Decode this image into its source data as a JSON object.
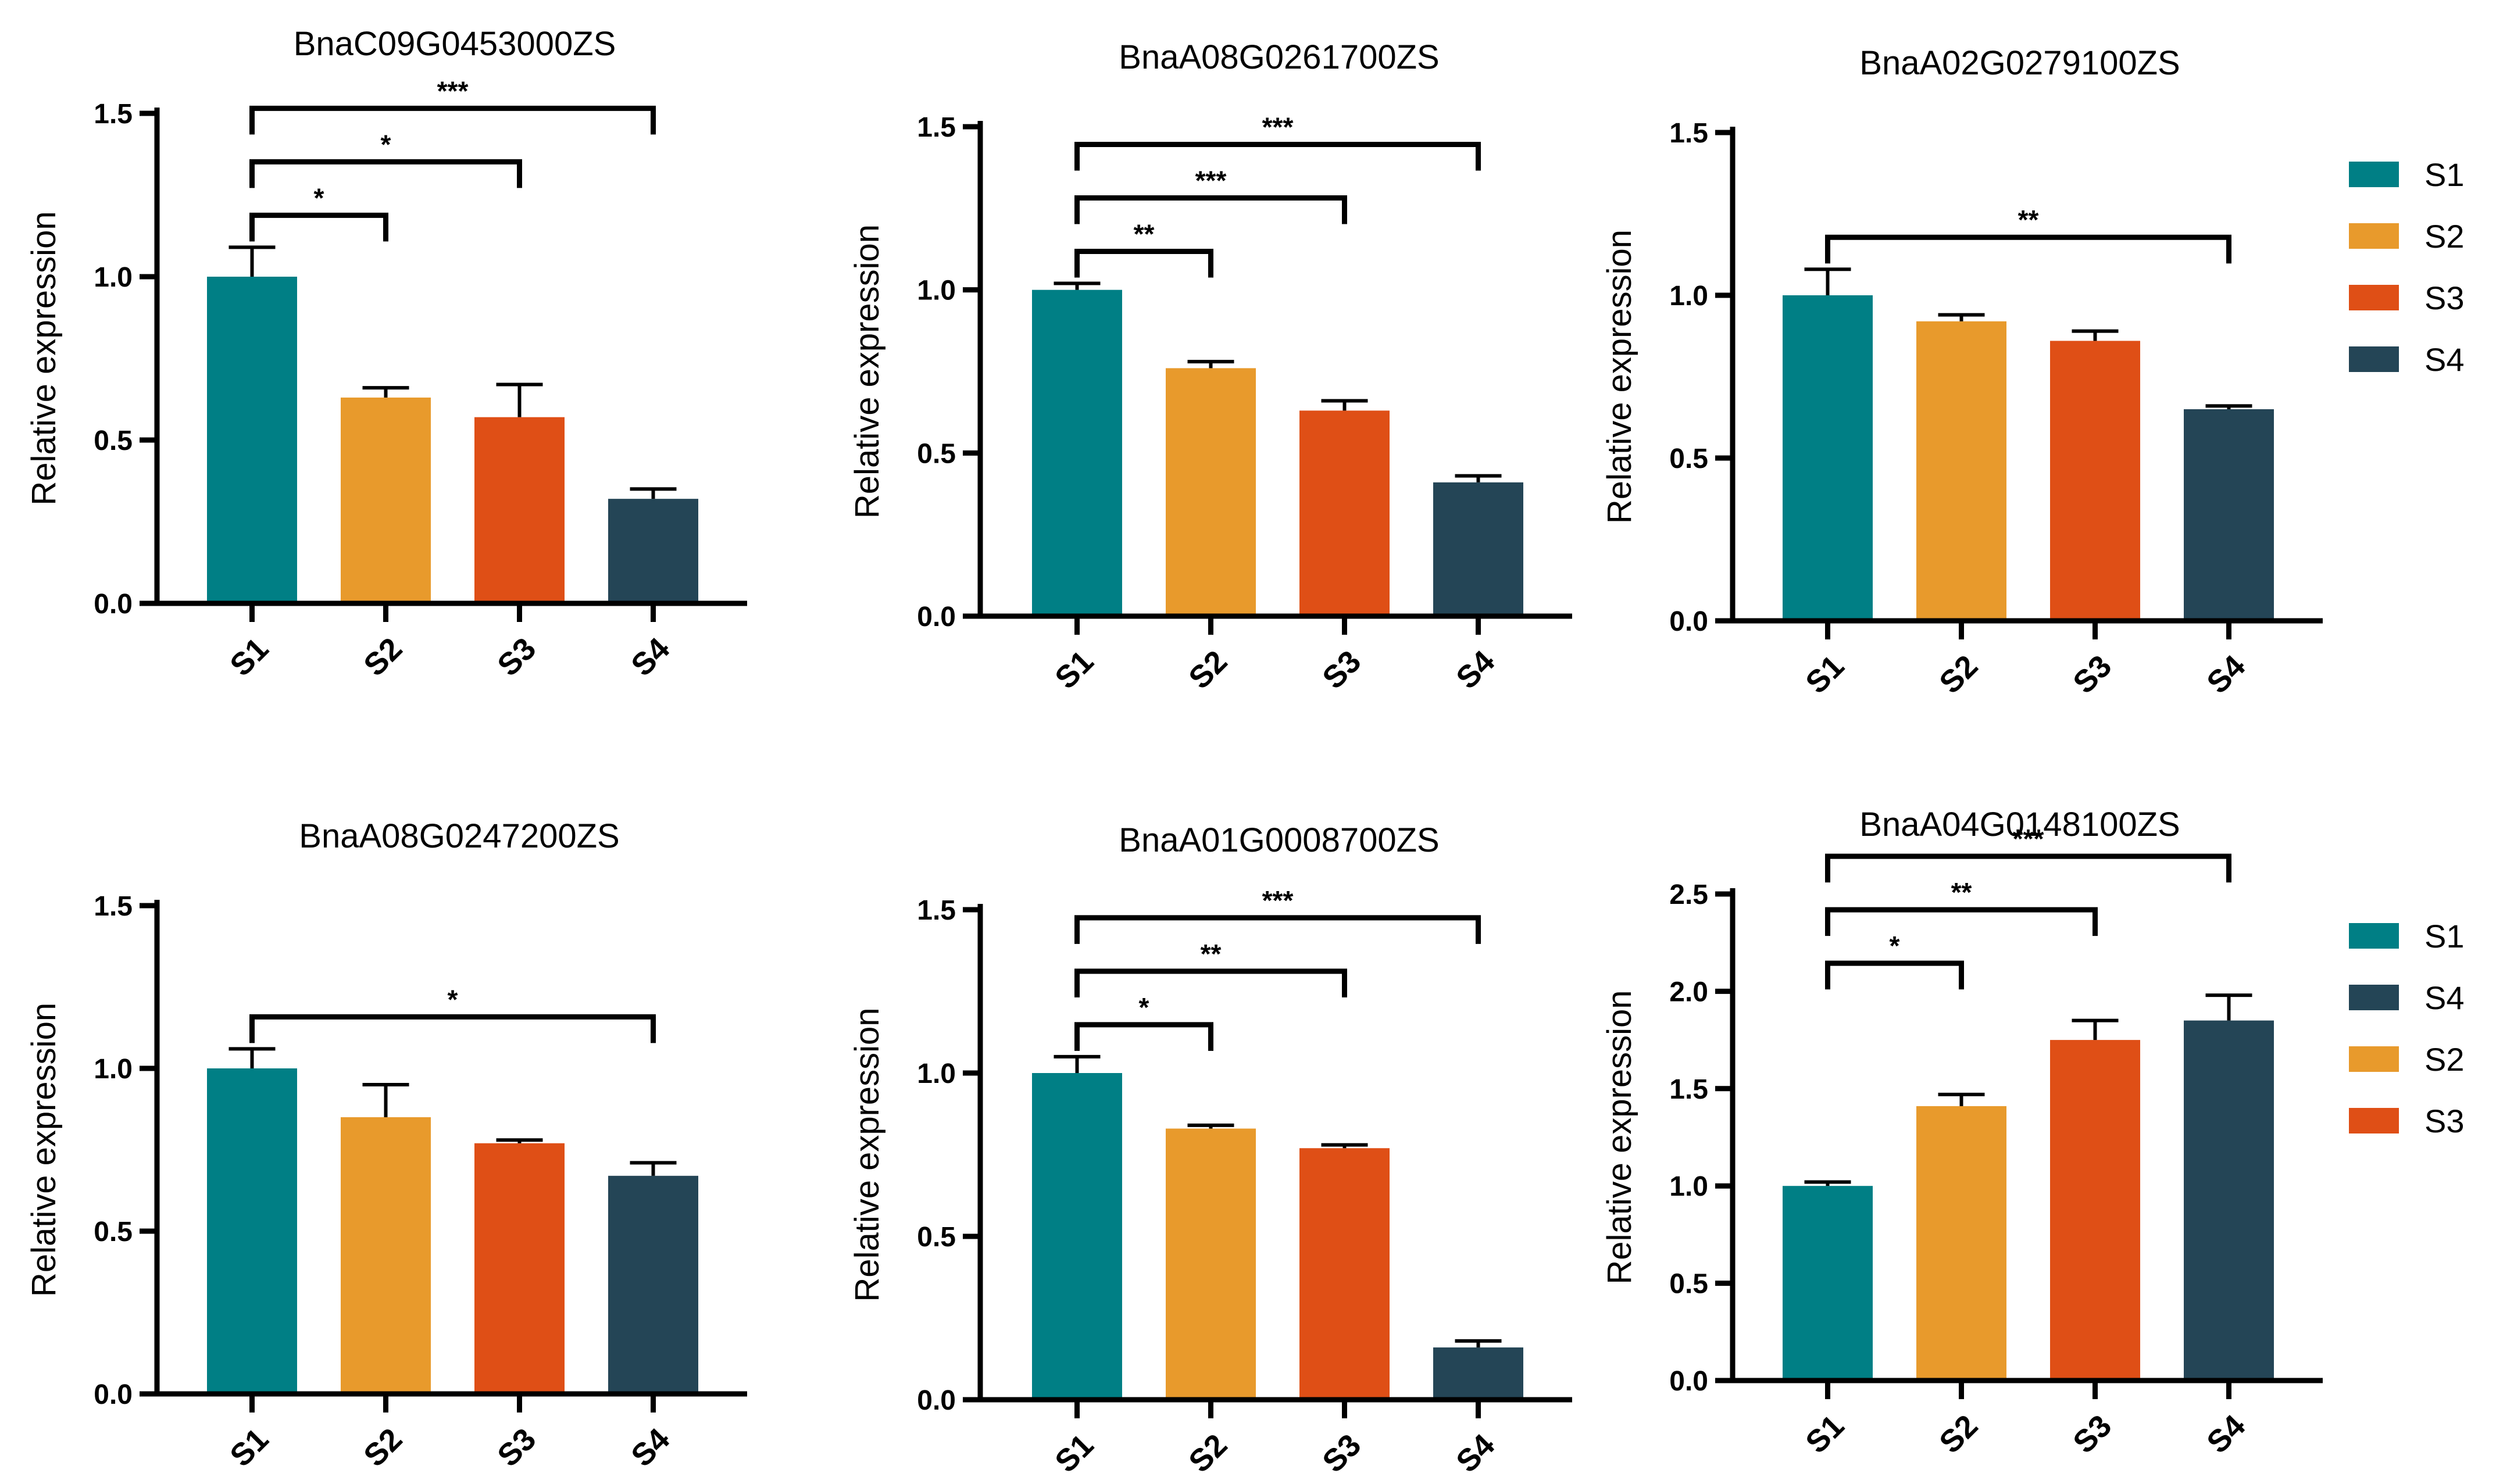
{
  "colors": {
    "S1": "#007f85",
    "S2": "#e89a2c",
    "S3": "#df4f16",
    "S4": "#244556"
  },
  "legends": [
    {
      "entries": [
        "S1",
        "S2",
        "S3",
        "S4"
      ]
    },
    {
      "entries": [
        "S1",
        "S4",
        "S2",
        "S3"
      ]
    }
  ],
  "chart_data": [
    {
      "type": "bar",
      "title": "BnaC09G0453000ZS",
      "ylabel": "Relative expression",
      "categories": [
        "S1",
        "S2",
        "S3",
        "S4"
      ],
      "values": [
        1.0,
        0.63,
        0.57,
        0.32
      ],
      "errors": [
        0.09,
        0.03,
        0.1,
        0.03
      ],
      "ylim": [
        0,
        1.5
      ],
      "yticks": [
        "0.0",
        "0.5",
        "1.0",
        "1.5"
      ],
      "significance": [
        {
          "from": "S1",
          "to": "S2",
          "label": "*"
        },
        {
          "from": "S1",
          "to": "S3",
          "label": "*"
        },
        {
          "from": "S1",
          "to": "S4",
          "label": "***"
        }
      ]
    },
    {
      "type": "bar",
      "title": "BnaA08G0261700ZS",
      "ylabel": "Relative expression",
      "categories": [
        "S1",
        "S2",
        "S3",
        "S4"
      ],
      "values": [
        1.0,
        0.76,
        0.63,
        0.41
      ],
      "errors": [
        0.02,
        0.02,
        0.03,
        0.02
      ],
      "ylim": [
        0,
        1.5
      ],
      "yticks": [
        "0.0",
        "0.5",
        "1.0",
        "1.5"
      ],
      "significance": [
        {
          "from": "S1",
          "to": "S2",
          "label": "**"
        },
        {
          "from": "S1",
          "to": "S3",
          "label": "***"
        },
        {
          "from": "S1",
          "to": "S4",
          "label": "***"
        }
      ]
    },
    {
      "type": "bar",
      "title": "BnaA02G0279100ZS",
      "ylabel": "Relative expression",
      "categories": [
        "S1",
        "S2",
        "S3",
        "S4"
      ],
      "values": [
        1.0,
        0.92,
        0.86,
        0.65
      ],
      "errors": [
        0.08,
        0.02,
        0.03,
        0.01
      ],
      "ylim": [
        0,
        1.5
      ],
      "yticks": [
        "0.0",
        "0.5",
        "1.0",
        "1.5"
      ],
      "significance": [
        {
          "from": "S1",
          "to": "S4",
          "label": "**"
        }
      ]
    },
    {
      "type": "bar",
      "title": "BnaA08G0247200ZS",
      "ylabel": "Relative expression",
      "categories": [
        "S1",
        "S2",
        "S3",
        "S4"
      ],
      "values": [
        1.0,
        0.85,
        0.77,
        0.67
      ],
      "errors": [
        0.06,
        0.1,
        0.01,
        0.04
      ],
      "ylim": [
        0,
        1.5
      ],
      "yticks": [
        "0.0",
        "0.5",
        "1.0",
        "1.5"
      ],
      "significance": [
        {
          "from": "S1",
          "to": "S4",
          "label": "*"
        }
      ]
    },
    {
      "type": "bar",
      "title": "BnaA01G0008700ZS",
      "ylabel": "Relative expression",
      "categories": [
        "S1",
        "S2",
        "S3",
        "S4"
      ],
      "values": [
        1.0,
        0.83,
        0.77,
        0.16
      ],
      "errors": [
        0.05,
        0.01,
        0.01,
        0.02
      ],
      "ylim": [
        0,
        1.5
      ],
      "yticks": [
        "0.0",
        "0.5",
        "1.0",
        "1.5"
      ],
      "significance": [
        {
          "from": "S1",
          "to": "S2",
          "label": "*"
        },
        {
          "from": "S1",
          "to": "S3",
          "label": "**"
        },
        {
          "from": "S1",
          "to": "S4",
          "label": "***"
        }
      ]
    },
    {
      "type": "bar",
      "title": "BnaA04G0148100ZS",
      "ylabel": "Relative expression",
      "categories": [
        "S1",
        "S2",
        "S3",
        "S4"
      ],
      "values": [
        1.0,
        1.41,
        1.75,
        1.85
      ],
      "errors": [
        0.02,
        0.06,
        0.1,
        0.13
      ],
      "ylim": [
        0,
        2.5
      ],
      "yticks": [
        "0.0",
        "0.5",
        "1.0",
        "1.5",
        "2.0",
        "2.5"
      ],
      "significance": [
        {
          "from": "S1",
          "to": "S2",
          "label": "*"
        },
        {
          "from": "S1",
          "to": "S3",
          "label": "**"
        },
        {
          "from": "S1",
          "to": "S4",
          "label": "***"
        }
      ]
    }
  ]
}
